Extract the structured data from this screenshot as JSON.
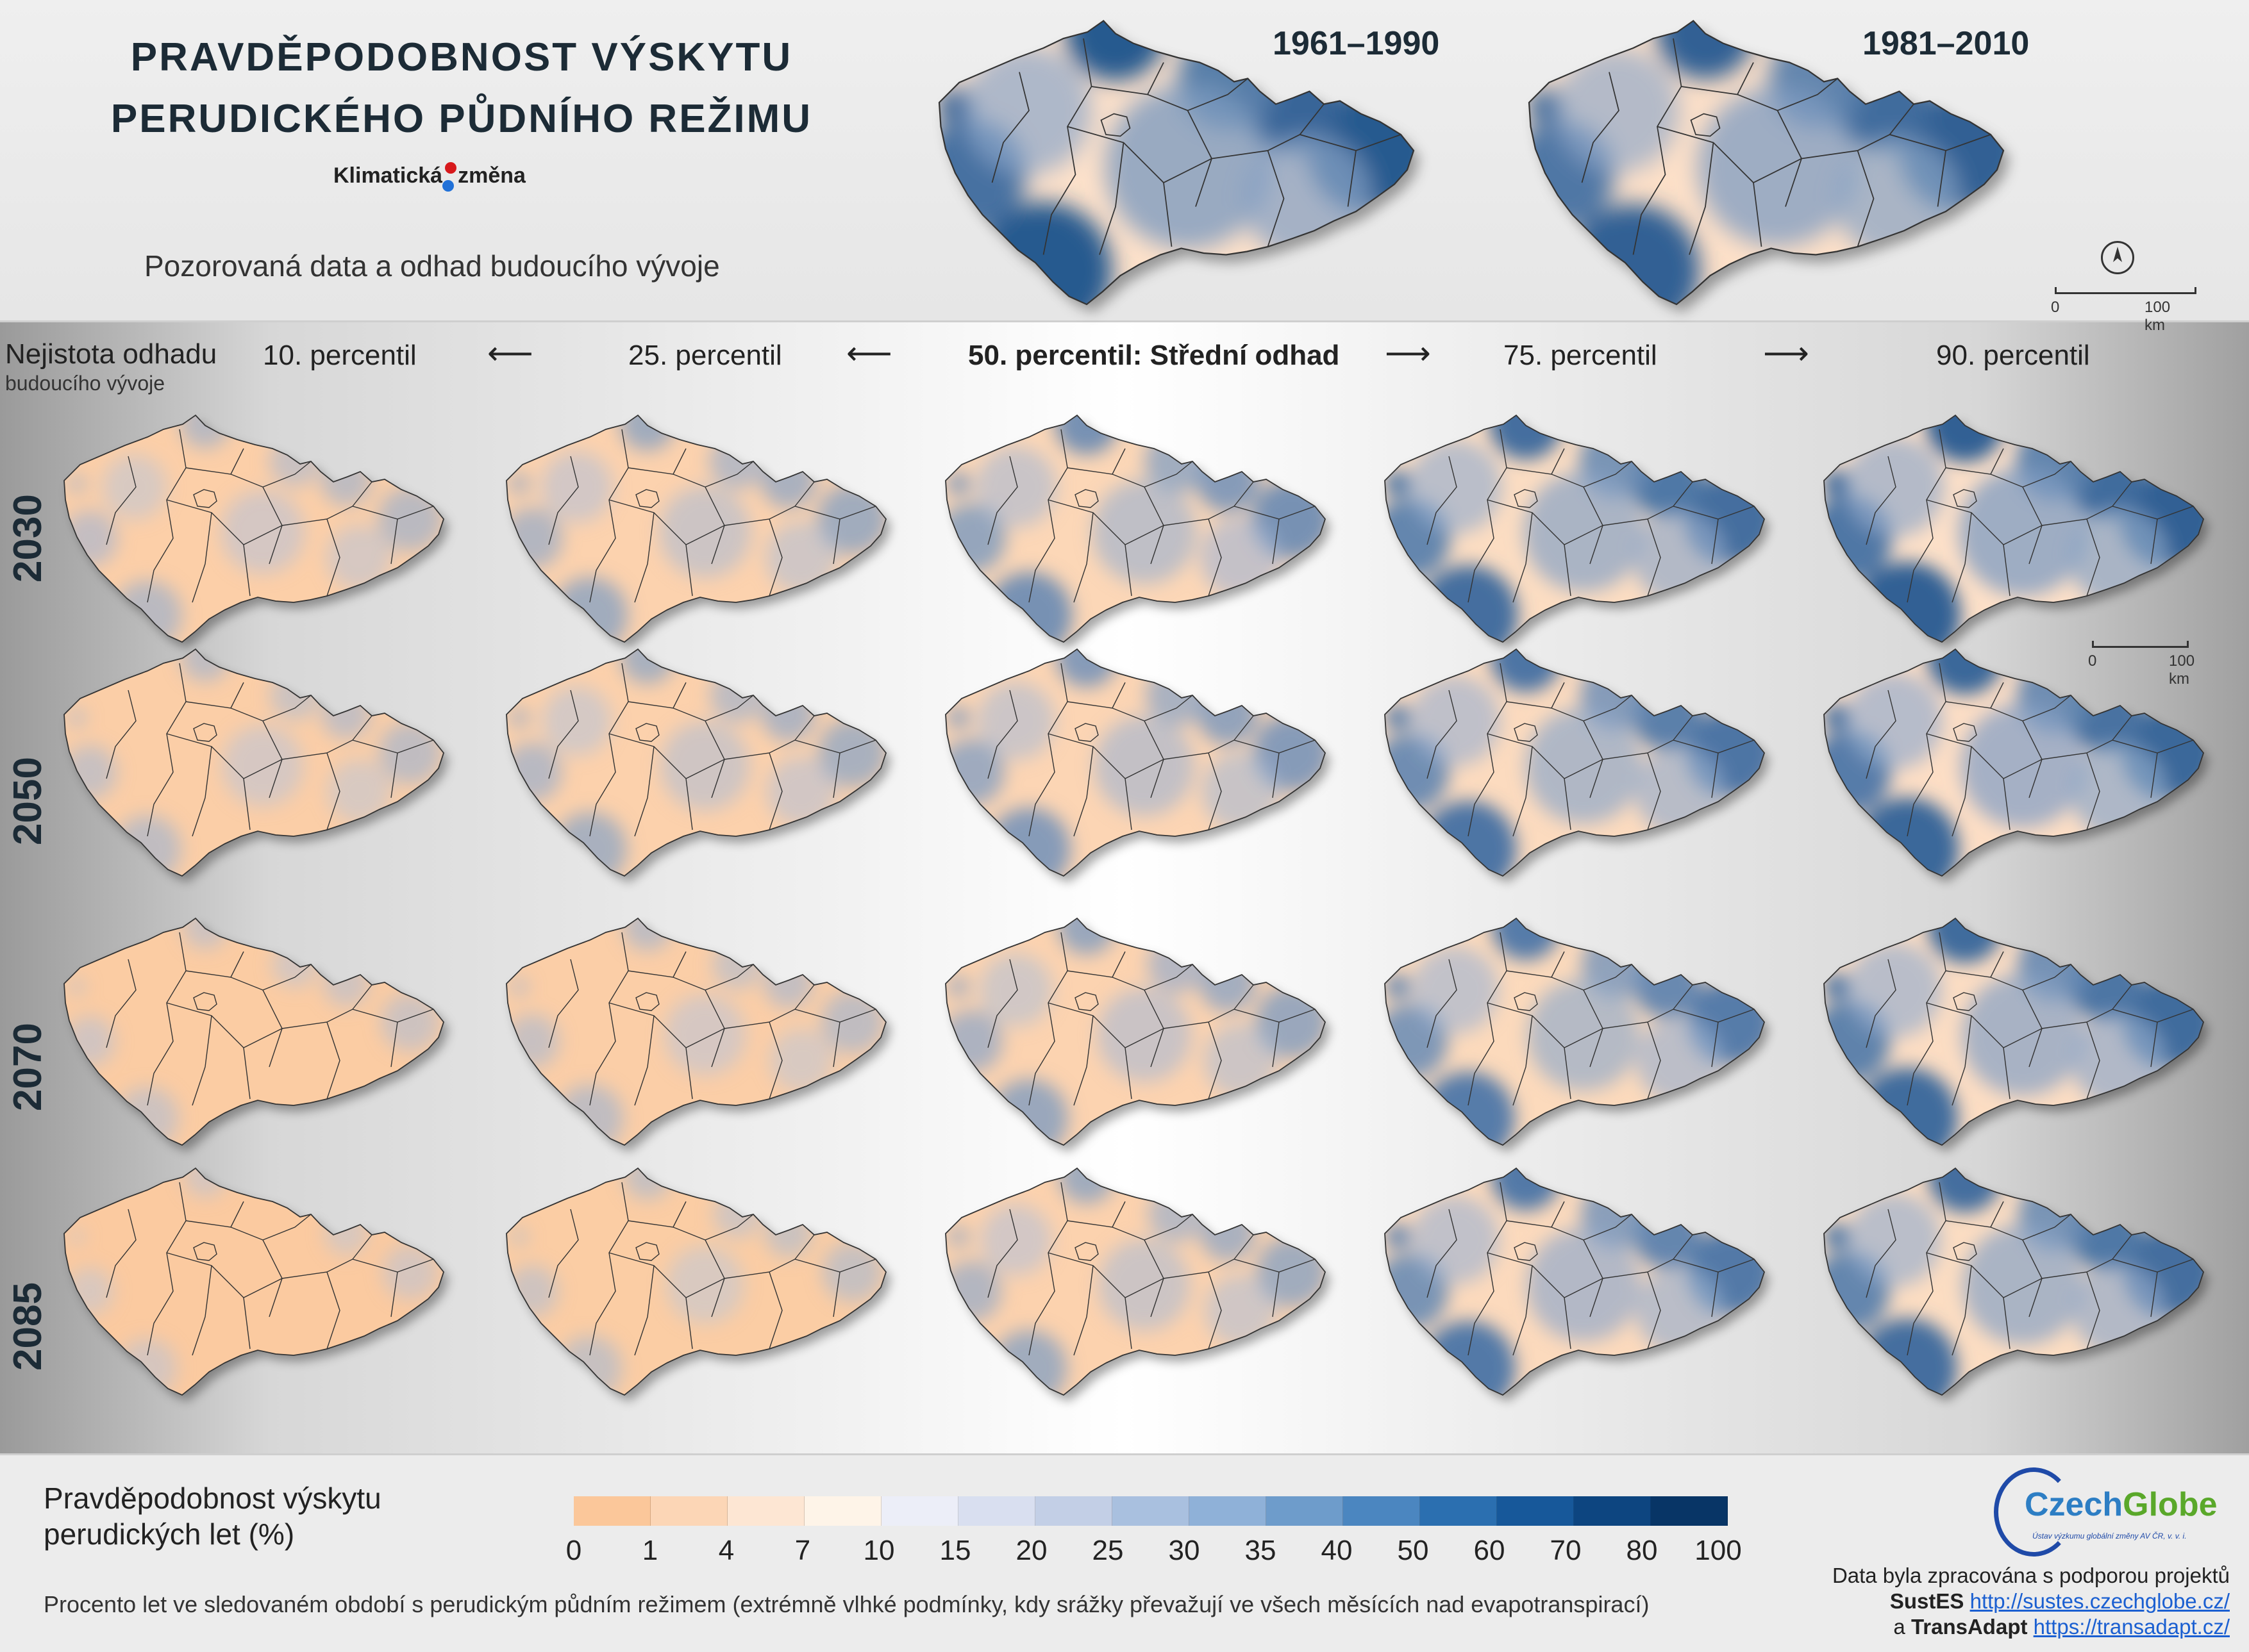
{
  "title_lines": [
    "PRAVDĚPODOBNOST VÝSKYTU",
    "PERUDICKÉHO PŮDNÍHO REŽIMU"
  ],
  "brand": {
    "left": "Klimatická",
    "right": "změna"
  },
  "subtitle": "Pozorovaná data a odhad budoucího vývoje",
  "historical_periods": [
    "1961–1990",
    "1981–2010"
  ],
  "uncertainty_title": "Nejistota odhadu",
  "uncertainty_subtitle": "budoucího vývoje",
  "percentiles": [
    "10. percentil",
    "25. percentil",
    "50. percentil: Střední odhad",
    "75. percentil",
    "90. percentil"
  ],
  "years": [
    "2030",
    "2050",
    "2070",
    "2085"
  ],
  "scale_bar": {
    "start": "0",
    "end": "100 km"
  },
  "legend": {
    "title_lines": [
      "Pravděpodobnost výskytu",
      "perudických let (%)"
    ],
    "ticks": [
      "0",
      "1",
      "4",
      "7",
      "10",
      "15",
      "20",
      "25",
      "30",
      "35",
      "40",
      "50",
      "60",
      "70",
      "80",
      "100"
    ],
    "colors": [
      "#fbc79a",
      "#fcd6b6",
      "#fde6d3",
      "#fef4e8",
      "#eceef8",
      "#d9dff0",
      "#c3cfe6",
      "#a9c0df",
      "#8fb1d8",
      "#6e9ccb",
      "#4b86c0",
      "#2b6fb0",
      "#17589a",
      "#0d4580",
      "#083566"
    ]
  },
  "note": "Procento let ve sledovaném období s perudickým půdním režimem (extrémně vlhké podmínky, kdy srážky převažují ve všech měsících nad evapotranspirací)",
  "logo": {
    "name_a": "Czech",
    "name_b": "Globe",
    "institute": "Ústav výzkumu globální změny AV ČR, v. v. i."
  },
  "credits": {
    "line1": "Data byla zpracována s podporou projektů",
    "project1": "SustES",
    "url1": "http://sustes.czechglobe.cz/",
    "connector": "a",
    "project2": "TransAdapt",
    "url2": "https://transadapt.cz/"
  },
  "map_wetness": {
    "historical": [
      0.85,
      0.8
    ],
    "rows": [
      [
        0.25,
        0.35,
        0.5,
        0.7,
        0.8
      ],
      [
        0.22,
        0.32,
        0.45,
        0.65,
        0.75
      ],
      [
        0.15,
        0.22,
        0.38,
        0.6,
        0.72
      ],
      [
        0.1,
        0.18,
        0.35,
        0.62,
        0.7
      ]
    ]
  }
}
